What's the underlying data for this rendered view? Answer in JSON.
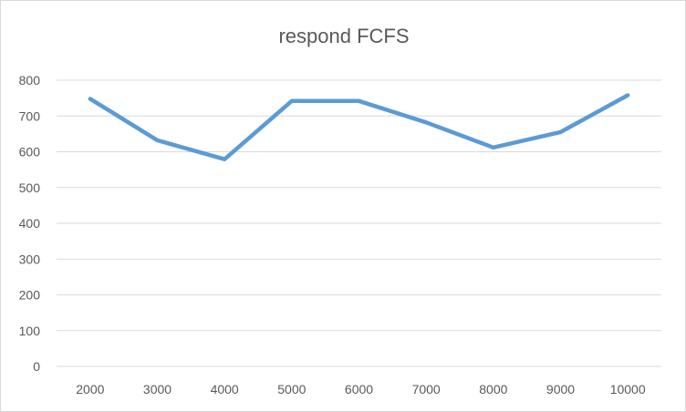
{
  "chart_data": {
    "type": "line",
    "title": "respond FCFS",
    "xlabel": "",
    "ylabel": "",
    "categories": [
      "2000",
      "3000",
      "4000",
      "5000",
      "6000",
      "7000",
      "8000",
      "9000",
      "10000"
    ],
    "series": [
      {
        "values": [
          748,
          632,
          579,
          742,
          742,
          682,
          612,
          655,
          758
        ]
      }
    ],
    "ylim": [
      0,
      800
    ],
    "yticks": [
      0,
      100,
      200,
      300,
      400,
      500,
      600,
      700,
      800
    ],
    "grid": "horizontal",
    "legend": "none",
    "colors": {
      "line": "#5b9bd5",
      "grid": "#d9d9d9",
      "text": "#595959"
    }
  }
}
